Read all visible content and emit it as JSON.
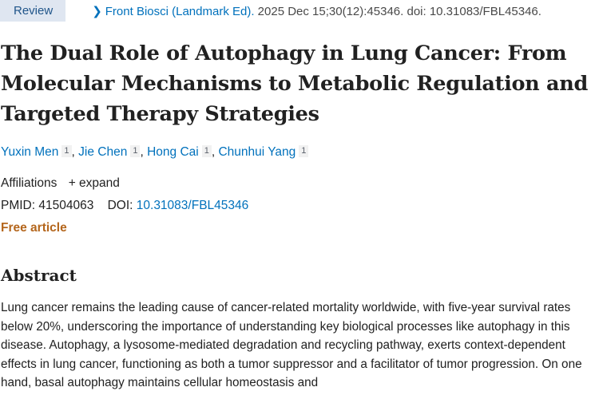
{
  "header": {
    "badge": "Review",
    "journal": "Front Biosci (Landmark Ed).",
    "citation": " 2025 Dec 15;30(12):45346. doi: 10.31083/FBL45346.",
    "chevron_icon": "chevron-right-icon"
  },
  "title": "The Dual Role of Autophagy in Lung Cancer: From Molecular Mechanisms to Metabolic Regulation and Targeted Therapy Strategies",
  "authors": [
    {
      "name": "Yuxin Men",
      "aff": "1"
    },
    {
      "name": "Jie Chen",
      "aff": "1"
    },
    {
      "name": "Hong Cai",
      "aff": "1"
    },
    {
      "name": "Chunhui Yang",
      "aff": "1"
    }
  ],
  "affiliations": {
    "label": "Affiliations",
    "expand": "+ expand"
  },
  "ids": {
    "pmid_label": "PMID:",
    "pmid": "41504063",
    "doi_label": "DOI:",
    "doi": "10.31083/FBL45346"
  },
  "free_article": "Free article",
  "abstract": {
    "heading": "Abstract",
    "text": "Lung cancer remains the leading cause of cancer-related mortality worldwide, with five-year survival rates below 20%, underscoring the importance of understanding key biological processes like autophagy in this disease. Autophagy, a lysosome-mediated degradation and recycling pathway, exerts context-dependent effects in lung cancer, functioning as both a tumor suppressor and a facilitator of tumor progression. On one hand, basal autophagy maintains cellular homeostasis and"
  },
  "colors": {
    "link": "#0071bc",
    "free": "#b4661c",
    "badge_bg": "#dfe6f1"
  }
}
